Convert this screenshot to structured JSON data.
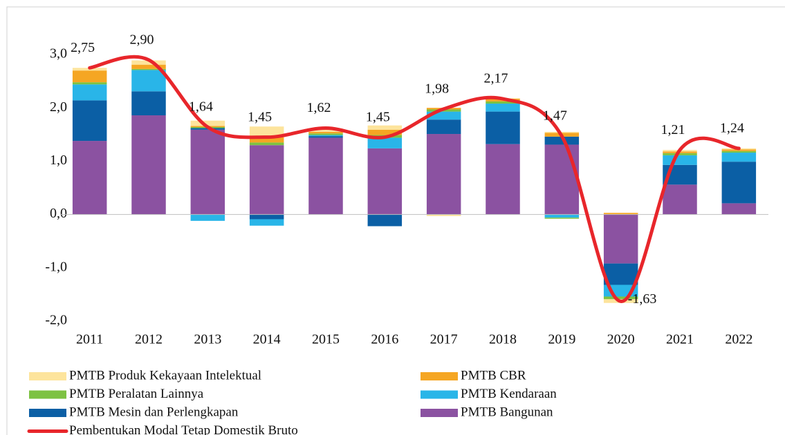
{
  "chart_data": {
    "type": "stacked-bar-line",
    "categories": [
      "2011",
      "2012",
      "2013",
      "2014",
      "2015",
      "2016",
      "2017",
      "2018",
      "2019",
      "2020",
      "2021",
      "2022"
    ],
    "series": [
      {
        "name": "PMTB Bangunan",
        "color": "#8b52a1",
        "values": [
          1.38,
          1.86,
          1.59,
          1.3,
          1.44,
          1.24,
          1.51,
          1.32,
          1.31,
          -0.92,
          0.56,
          0.21
        ]
      },
      {
        "name": "PMTB Mesin dan Perlengkapan",
        "color": "#0b5fa5",
        "values": [
          0.76,
          0.45,
          0.03,
          -0.09,
          0.03,
          -0.22,
          0.27,
          0.61,
          0.15,
          -0.4,
          0.37,
          0.78
        ]
      },
      {
        "name": "PMTB Kendaraan",
        "color": "#29b5e8",
        "values": [
          0.3,
          0.4,
          -0.12,
          -0.12,
          0.02,
          0.2,
          0.15,
          0.15,
          -0.06,
          -0.22,
          0.18,
          0.17
        ]
      },
      {
        "name": "PMTB Peralatan Lainnya",
        "color": "#7dc242",
        "values": [
          0.04,
          0.02,
          0.02,
          0.05,
          0.03,
          0.05,
          0.04,
          0.04,
          -0.02,
          -0.05,
          0.04,
          0.03
        ]
      },
      {
        "name": "PMTB CBR",
        "color": "#f5a623",
        "values": [
          0.22,
          0.08,
          0.02,
          0.1,
          0.03,
          0.1,
          0.03,
          0.05,
          0.07,
          0.03,
          0.03,
          0.03
        ]
      },
      {
        "name": "PMTB Produk Kekayaan Intelektual",
        "color": "#fde49c",
        "values": [
          0.05,
          0.08,
          0.1,
          0.2,
          0.06,
          0.08,
          -0.03,
          0.01,
          0.02,
          -0.07,
          0.03,
          0.02
        ]
      }
    ],
    "line": {
      "name": "Pembentukan Modal Tetap Domestik Bruto",
      "color": "#e8262b",
      "values": [
        2.75,
        2.9,
        1.64,
        1.45,
        1.62,
        1.45,
        1.98,
        2.17,
        1.47,
        -1.63,
        1.21,
        1.24
      ],
      "value_labels": [
        "2,75",
        "2,90",
        "1,64",
        "1,45",
        "1,62",
        "1,45",
        "1,98",
        "2,17",
        "1,47",
        "-1,63",
        "1,21",
        "1,24"
      ]
    },
    "ylim": [
      -2.0,
      3.0
    ],
    "yticks": [
      {
        "value": -2.0,
        "label": "-2,0"
      },
      {
        "value": -1.0,
        "label": "-1,0"
      },
      {
        "value": 0.0,
        "label": "0,0"
      },
      {
        "value": 1.0,
        "label": "1,0"
      },
      {
        "value": 2.0,
        "label": "2,0"
      },
      {
        "value": 3.0,
        "label": "3,0"
      }
    ],
    "grid": false
  }
}
